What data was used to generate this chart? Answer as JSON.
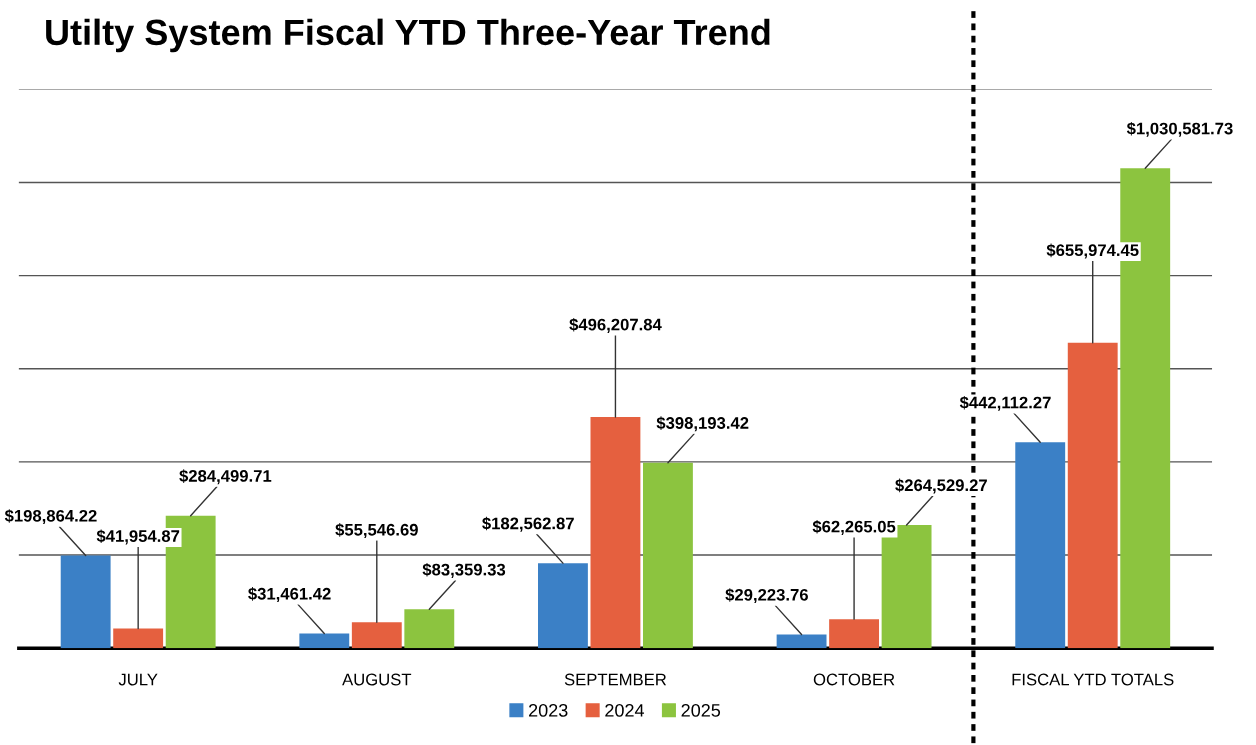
{
  "chart_data": {
    "type": "bar",
    "title": "Utilty System Fiscal YTD Three-Year Trend",
    "categories": [
      "JULY",
      "AUGUST",
      "SEPTEMBER",
      "OCTOBER",
      "FISCAL YTD TOTALS"
    ],
    "series": [
      {
        "name": "2023",
        "color": "#3b80c6",
        "values": [
          198864.22,
          31461.42,
          182562.87,
          29223.76,
          442112.27
        ],
        "value_labels": [
          "$198,864.22",
          "$31,461.42",
          "$182,562.87",
          "$29,223.76",
          "$442,112.27"
        ]
      },
      {
        "name": "2024",
        "color": "#e5603f",
        "values": [
          41954.87,
          55546.69,
          496207.84,
          62265.05,
          655974.45
        ],
        "value_labels": [
          "$41,954.87",
          "$55,546.69",
          "$496,207.84",
          "$62,265.05",
          "$655,974.45"
        ]
      },
      {
        "name": "2025",
        "color": "#8cc43f",
        "values": [
          284499.71,
          83359.33,
          398193.42,
          264529.27,
          1030581.73
        ],
        "value_labels": [
          "$284,499.71",
          "$83,359.33",
          "$398,193.42",
          "$264,529.27",
          "$1,030,581.73"
        ]
      }
    ],
    "yticks": [
      {
        "value": 0,
        "label": null
      },
      {
        "value": 200000,
        "label": null
      },
      {
        "value": 400000,
        "label": null
      },
      {
        "value": 600000,
        "label": null
      },
      {
        "value": 800000,
        "label": null
      },
      {
        "value": 1000000,
        "label": null
      },
      {
        "value": 1200000,
        "label": null
      }
    ],
    "tick_labels": "x",
    "grid": "y",
    "legend": "bottom"
  }
}
